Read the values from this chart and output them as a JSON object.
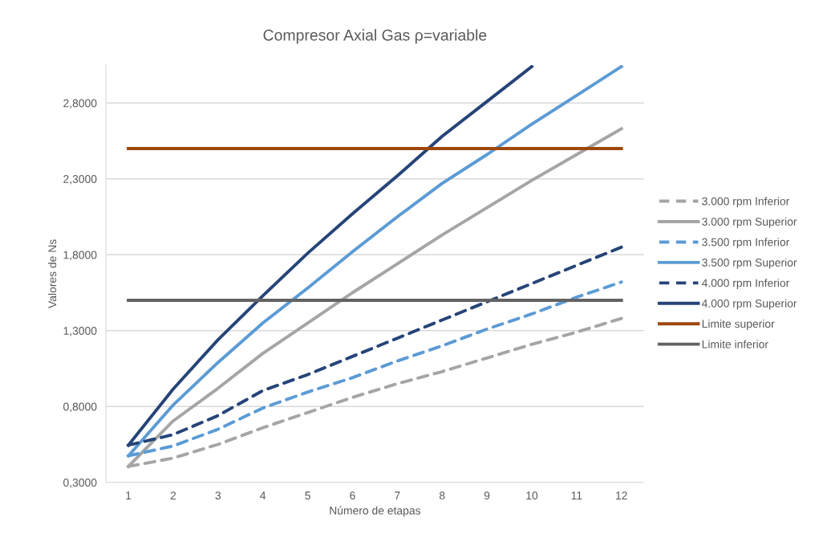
{
  "chart_data": {
    "type": "line",
    "title": "Compresor Axial Gas ρ=variable",
    "xlabel": "Número de etapas",
    "ylabel": "Valores de Ns",
    "categories": [
      "1",
      "2",
      "3",
      "4",
      "5",
      "6",
      "7",
      "8",
      "9",
      "10",
      "11",
      "12"
    ],
    "ylim": [
      0.3,
      3.05
    ],
    "yticks": [
      {
        "value": 0.3,
        "label": "0,3000"
      },
      {
        "value": 0.8,
        "label": "0,8000"
      },
      {
        "value": 1.3,
        "label": "1,3000"
      },
      {
        "value": 1.8,
        "label": "1,8000"
      },
      {
        "value": 2.3,
        "label": "2,3000"
      },
      {
        "value": 2.8,
        "label": "2,8000"
      }
    ],
    "grid": "y",
    "legend": "right",
    "marker": "none",
    "series": [
      {
        "name": "3.000 rpm Inferior",
        "color": "#a5a5a5",
        "line_style": "dashed",
        "values": [
          0.405,
          0.46,
          0.55,
          0.66,
          0.76,
          0.86,
          0.95,
          1.03,
          1.12,
          1.21,
          1.29,
          1.38
        ]
      },
      {
        "name": "3.000 rpm Superior",
        "color": "#a5a5a5",
        "line_style": "solid",
        "values": [
          0.405,
          0.705,
          0.92,
          1.15,
          1.35,
          1.55,
          1.74,
          1.93,
          2.11,
          2.29,
          2.46,
          2.63
        ]
      },
      {
        "name": "3.500 rpm Inferior",
        "color": "#5b9bd5",
        "line_style": "dashed",
        "values": [
          0.475,
          0.54,
          0.65,
          0.79,
          0.895,
          0.99,
          1.1,
          1.2,
          1.31,
          1.41,
          1.52,
          1.62
        ]
      },
      {
        "name": "3.500 rpm Superior",
        "color": "#5b9bd5",
        "line_style": "solid",
        "values": [
          0.475,
          0.81,
          1.09,
          1.35,
          1.58,
          1.82,
          2.05,
          2.27,
          2.46,
          2.66,
          2.85,
          3.04
        ]
      },
      {
        "name": "4.000 rpm Inferior",
        "color": "#264478",
        "line_style": "dashed",
        "values": [
          0.545,
          0.615,
          0.74,
          0.905,
          1.01,
          1.13,
          1.25,
          1.37,
          1.49,
          1.61,
          1.73,
          1.85
        ]
      },
      {
        "name": "4.000 rpm Superior",
        "color": "#264478",
        "line_style": "solid",
        "values": [
          0.545,
          0.915,
          1.24,
          1.53,
          1.81,
          2.07,
          2.32,
          2.58,
          2.81,
          3.04,
          null,
          null
        ]
      },
      {
        "name": "Limite superior",
        "color": "#9e480e",
        "line_style": "solid",
        "values": [
          2.5,
          2.5,
          2.5,
          2.5,
          2.5,
          2.5,
          2.5,
          2.5,
          2.5,
          2.5,
          2.5,
          2.5
        ]
      },
      {
        "name": "Limite inferior",
        "color": "#636363",
        "line_style": "solid",
        "values": [
          1.5,
          1.5,
          1.5,
          1.5,
          1.5,
          1.5,
          1.5,
          1.5,
          1.5,
          1.5,
          1.5,
          1.5
        ]
      }
    ]
  }
}
